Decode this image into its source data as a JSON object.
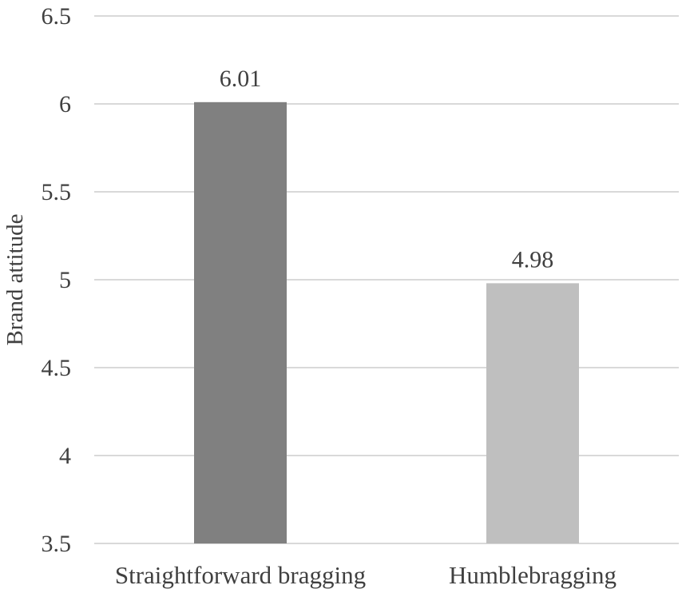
{
  "chart_data": {
    "type": "bar",
    "title": "",
    "xlabel": "",
    "ylabel": "Brand attitude",
    "ylim": [
      3.5,
      6.5
    ],
    "yticks": [
      {
        "value": 3.5,
        "label": "3.5"
      },
      {
        "value": 4,
        "label": "4"
      },
      {
        "value": 4.5,
        "label": "4.5"
      },
      {
        "value": 5,
        "label": "5"
      },
      {
        "value": 5.5,
        "label": "5.5"
      },
      {
        "value": 6,
        "label": "6"
      },
      {
        "value": 6.5,
        "label": "6.5"
      }
    ],
    "categories": [
      "Straightforward bragging",
      "Humblebragging"
    ],
    "values": [
      6.01,
      4.98
    ],
    "data_labels": [
      "6.01",
      "4.98"
    ],
    "bar_colors": [
      "#808080",
      "#bfbfbf"
    ],
    "grid": true,
    "legend": "none"
  }
}
